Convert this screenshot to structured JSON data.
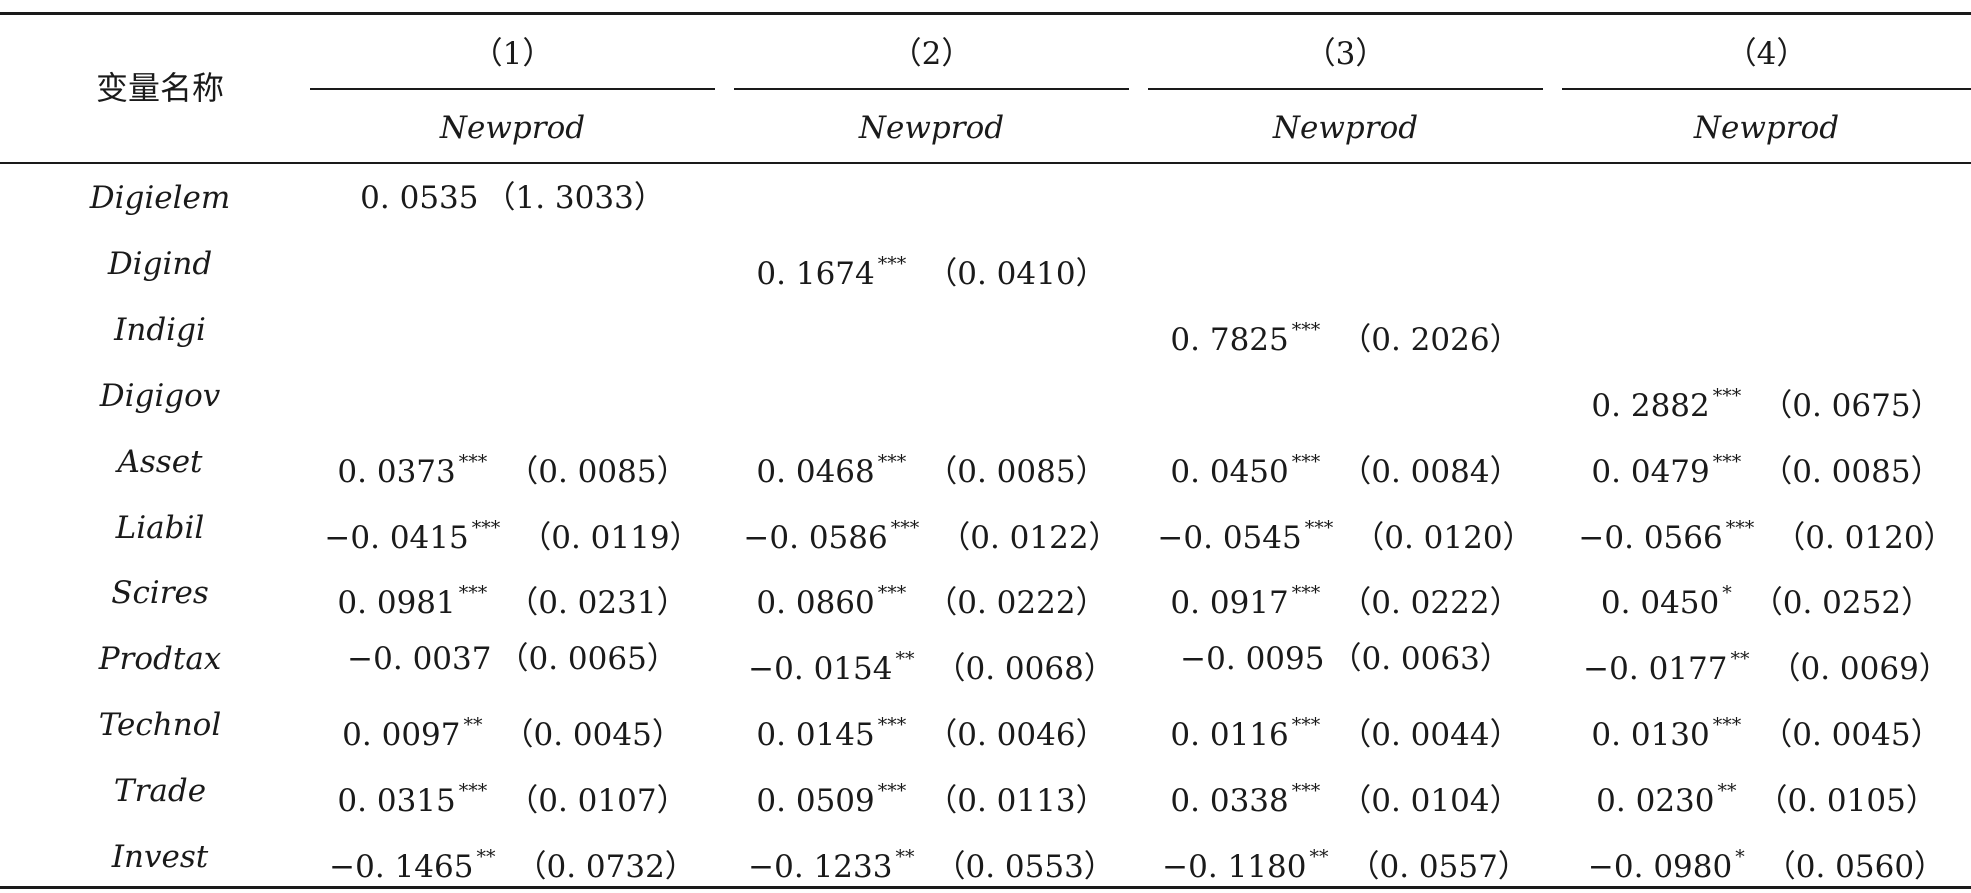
{
  "header": {
    "varname_label": "变量名称",
    "columns": [
      {
        "num": "（1）",
        "dep": "Newprod"
      },
      {
        "num": "（2）",
        "dep": "Newprod"
      },
      {
        "num": "（3）",
        "dep": "Newprod"
      },
      {
        "num": "（4）",
        "dep": "Newprod"
      }
    ]
  },
  "rows": [
    {
      "label": "Digielem",
      "cells": [
        {
          "coef": "0. 0535",
          "sig": "",
          "se": "（1. 3033）"
        },
        {
          "coef": "",
          "sig": "",
          "se": ""
        },
        {
          "coef": "",
          "sig": "",
          "se": ""
        },
        {
          "coef": "",
          "sig": "",
          "se": ""
        }
      ]
    },
    {
      "label": "Digind",
      "cells": [
        {
          "coef": "",
          "sig": "",
          "se": ""
        },
        {
          "coef": "0. 1674",
          "sig": "***",
          "se": "（0. 0410）"
        },
        {
          "coef": "",
          "sig": "",
          "se": ""
        },
        {
          "coef": "",
          "sig": "",
          "se": ""
        }
      ]
    },
    {
      "label": "Indigi",
      "cells": [
        {
          "coef": "",
          "sig": "",
          "se": ""
        },
        {
          "coef": "",
          "sig": "",
          "se": ""
        },
        {
          "coef": "0. 7825",
          "sig": "***",
          "se": "（0. 2026）"
        },
        {
          "coef": "",
          "sig": "",
          "se": ""
        }
      ]
    },
    {
      "label": "Digigov",
      "cells": [
        {
          "coef": "",
          "sig": "",
          "se": ""
        },
        {
          "coef": "",
          "sig": "",
          "se": ""
        },
        {
          "coef": "",
          "sig": "",
          "se": ""
        },
        {
          "coef": "0. 2882",
          "sig": "***",
          "se": "（0. 0675）"
        }
      ]
    },
    {
      "label": "Asset",
      "cells": [
        {
          "coef": "0. 0373",
          "sig": "***",
          "se": "（0. 0085）"
        },
        {
          "coef": "0. 0468",
          "sig": "***",
          "se": "（0. 0085）"
        },
        {
          "coef": "0. 0450",
          "sig": "***",
          "se": "（0. 0084）"
        },
        {
          "coef": "0. 0479",
          "sig": "***",
          "se": "（0. 0085）"
        }
      ]
    },
    {
      "label": "Liabil",
      "cells": [
        {
          "coef": "−0. 0415",
          "sig": "***",
          "se": "（0. 0119）"
        },
        {
          "coef": "−0. 0586",
          "sig": "***",
          "se": "（0. 0122）"
        },
        {
          "coef": "−0. 0545",
          "sig": "***",
          "se": "（0. 0120）"
        },
        {
          "coef": "−0. 0566",
          "sig": "***",
          "se": "（0. 0120）"
        }
      ]
    },
    {
      "label": "Scires",
      "cells": [
        {
          "coef": "0. 0981",
          "sig": "***",
          "se": "（0. 0231）"
        },
        {
          "coef": "0. 0860",
          "sig": "***",
          "se": "（0. 0222）"
        },
        {
          "coef": "0. 0917",
          "sig": "***",
          "se": "（0. 0222）"
        },
        {
          "coef": "0. 0450",
          "sig": "*",
          "se": "（0. 0252）"
        }
      ]
    },
    {
      "label": "Prodtax",
      "cells": [
        {
          "coef": "−0. 0037",
          "sig": "",
          "se": "（0. 0065）"
        },
        {
          "coef": "−0. 0154",
          "sig": "**",
          "se": "（0. 0068）"
        },
        {
          "coef": "−0. 0095",
          "sig": "",
          "se": "（0. 0063）"
        },
        {
          "coef": "−0. 0177",
          "sig": "**",
          "se": "（0. 0069）"
        }
      ]
    },
    {
      "label": "Technol",
      "cells": [
        {
          "coef": "0. 0097",
          "sig": "**",
          "se": "（0. 0045）"
        },
        {
          "coef": "0. 0145",
          "sig": "***",
          "se": "（0. 0046）"
        },
        {
          "coef": "0. 0116",
          "sig": "***",
          "se": "（0. 0044）"
        },
        {
          "coef": "0. 0130",
          "sig": "***",
          "se": "（0. 0045）"
        }
      ]
    },
    {
      "label": "Trade",
      "cells": [
        {
          "coef": "0. 0315",
          "sig": "***",
          "se": "（0. 0107）"
        },
        {
          "coef": "0. 0509",
          "sig": "***",
          "se": "（0. 0113）"
        },
        {
          "coef": "0. 0338",
          "sig": "***",
          "se": "（0. 0104）"
        },
        {
          "coef": "0. 0230",
          "sig": "**",
          "se": "（0. 0105）"
        }
      ]
    },
    {
      "label": "Invest",
      "cells": [
        {
          "coef": "−0. 1465",
          "sig": "**",
          "se": "（0. 0732）"
        },
        {
          "coef": "−0. 1233",
          "sig": "**",
          "se": "（0. 0553）"
        },
        {
          "coef": "−0. 1180",
          "sig": "**",
          "se": "（0. 0557）"
        },
        {
          "coef": "−0. 0980",
          "sig": "*",
          "se": "（0. 0560）"
        }
      ]
    }
  ]
}
